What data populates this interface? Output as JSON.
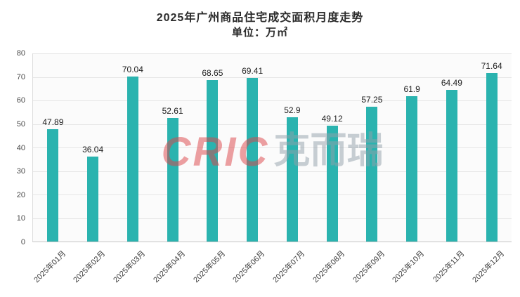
{
  "chart_data": {
    "type": "bar",
    "title": "2025年广州商品住宅成交面积月度走势",
    "subtitle": "单位：万㎡",
    "categories": [
      "2025年01月",
      "2025年02月",
      "2025年03月",
      "2025年04月",
      "2025年05月",
      "2025年06月",
      "2025年07月",
      "2025年08月",
      "2025年09月",
      "2025年10月",
      "2025年11月",
      "2025年12月"
    ],
    "values": [
      47.89,
      36.04,
      70.04,
      52.61,
      68.65,
      69.41,
      52.9,
      49.12,
      57.25,
      61.9,
      64.49,
      71.64
    ],
    "xlabel": "",
    "ylabel": "",
    "ylim": [
      0,
      80
    ],
    "ytick_step": 10,
    "bar_color": "#2ab3af",
    "grid": true,
    "legend": "none"
  },
  "watermark": {
    "brand": "CRIC",
    "brand_cn": "克而瑞",
    "brand_color": "#dd4348",
    "brand_cn_color": "#93a0ab"
  }
}
